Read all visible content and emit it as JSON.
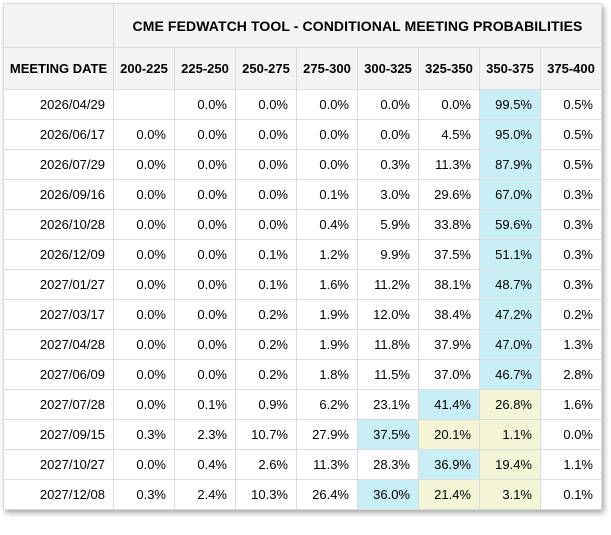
{
  "chart_data": {
    "type": "table",
    "title": "CME FEDWATCH TOOL - CONDITIONAL MEETING PROBABILITIES",
    "columns": [
      "MEETING DATE",
      "200-225",
      "225-250",
      "250-275",
      "275-300",
      "300-325",
      "325-350",
      "350-375",
      "375-400"
    ],
    "rows": [
      {
        "date": "2026/04/29",
        "values": [
          "",
          "0.0%",
          "0.0%",
          "0.0%",
          "0.0%",
          "0.0%",
          "99.5%",
          "0.5%"
        ],
        "highlights": [
          "",
          "",
          "",
          "",
          "",
          "",
          "cyan",
          ""
        ]
      },
      {
        "date": "2026/06/17",
        "values": [
          "0.0%",
          "0.0%",
          "0.0%",
          "0.0%",
          "0.0%",
          "4.5%",
          "95.0%",
          "0.5%"
        ],
        "highlights": [
          "",
          "",
          "",
          "",
          "",
          "",
          "cyan",
          ""
        ]
      },
      {
        "date": "2026/07/29",
        "values": [
          "0.0%",
          "0.0%",
          "0.0%",
          "0.0%",
          "0.3%",
          "11.3%",
          "87.9%",
          "0.5%"
        ],
        "highlights": [
          "",
          "",
          "",
          "",
          "",
          "",
          "cyan",
          ""
        ]
      },
      {
        "date": "2026/09/16",
        "values": [
          "0.0%",
          "0.0%",
          "0.0%",
          "0.1%",
          "3.0%",
          "29.6%",
          "67.0%",
          "0.3%"
        ],
        "highlights": [
          "",
          "",
          "",
          "",
          "",
          "",
          "cyan",
          ""
        ]
      },
      {
        "date": "2026/10/28",
        "values": [
          "0.0%",
          "0.0%",
          "0.0%",
          "0.4%",
          "5.9%",
          "33.8%",
          "59.6%",
          "0.3%"
        ],
        "highlights": [
          "",
          "",
          "",
          "",
          "",
          "",
          "cyan",
          ""
        ]
      },
      {
        "date": "2026/12/09",
        "values": [
          "0.0%",
          "0.0%",
          "0.1%",
          "1.2%",
          "9.9%",
          "37.5%",
          "51.1%",
          "0.3%"
        ],
        "highlights": [
          "",
          "",
          "",
          "",
          "",
          "",
          "cyan",
          ""
        ]
      },
      {
        "date": "2027/01/27",
        "values": [
          "0.0%",
          "0.0%",
          "0.1%",
          "1.6%",
          "11.2%",
          "38.1%",
          "48.7%",
          "0.3%"
        ],
        "highlights": [
          "",
          "",
          "",
          "",
          "",
          "",
          "cyan",
          ""
        ]
      },
      {
        "date": "2027/03/17",
        "values": [
          "0.0%",
          "0.0%",
          "0.2%",
          "1.9%",
          "12.0%",
          "38.4%",
          "47.2%",
          "0.2%"
        ],
        "highlights": [
          "",
          "",
          "",
          "",
          "",
          "",
          "cyan",
          ""
        ]
      },
      {
        "date": "2027/04/28",
        "values": [
          "0.0%",
          "0.0%",
          "0.2%",
          "1.9%",
          "11.8%",
          "37.9%",
          "47.0%",
          "1.3%"
        ],
        "highlights": [
          "",
          "",
          "",
          "",
          "",
          "",
          "cyan",
          ""
        ]
      },
      {
        "date": "2027/06/09",
        "values": [
          "0.0%",
          "0.0%",
          "0.2%",
          "1.8%",
          "11.5%",
          "37.0%",
          "46.7%",
          "2.8%"
        ],
        "highlights": [
          "",
          "",
          "",
          "",
          "",
          "",
          "cyan",
          ""
        ]
      },
      {
        "date": "2027/07/28",
        "values": [
          "0.0%",
          "0.1%",
          "0.9%",
          "6.2%",
          "23.1%",
          "41.4%",
          "26.8%",
          "1.6%"
        ],
        "highlights": [
          "",
          "",
          "",
          "",
          "",
          "cyan",
          "yellow",
          ""
        ]
      },
      {
        "date": "2027/09/15",
        "values": [
          "0.3%",
          "2.3%",
          "10.7%",
          "27.9%",
          "37.5%",
          "20.1%",
          "1.1%",
          "0.0%"
        ],
        "highlights": [
          "",
          "",
          "",
          "",
          "cyan",
          "yellow",
          "yellow",
          ""
        ]
      },
      {
        "date": "2027/10/27",
        "values": [
          "0.0%",
          "0.4%",
          "2.6%",
          "11.3%",
          "28.3%",
          "36.9%",
          "19.4%",
          "1.1%"
        ],
        "highlights": [
          "",
          "",
          "",
          "",
          "",
          "cyan",
          "yellow",
          ""
        ]
      },
      {
        "date": "2027/12/08",
        "values": [
          "0.3%",
          "2.4%",
          "10.3%",
          "26.4%",
          "36.0%",
          "21.4%",
          "3.1%",
          "0.1%"
        ],
        "highlights": [
          "",
          "",
          "",
          "",
          "cyan",
          "yellow",
          "yellow",
          ""
        ]
      }
    ]
  },
  "colors": {
    "highlight_cyan": "#c9eff6",
    "highlight_yellow": "#f4f4d6",
    "header_bg": "#f4f4f4",
    "cell_bg": "#ffffff",
    "border": "#dcdcdc",
    "text": "#000000"
  }
}
